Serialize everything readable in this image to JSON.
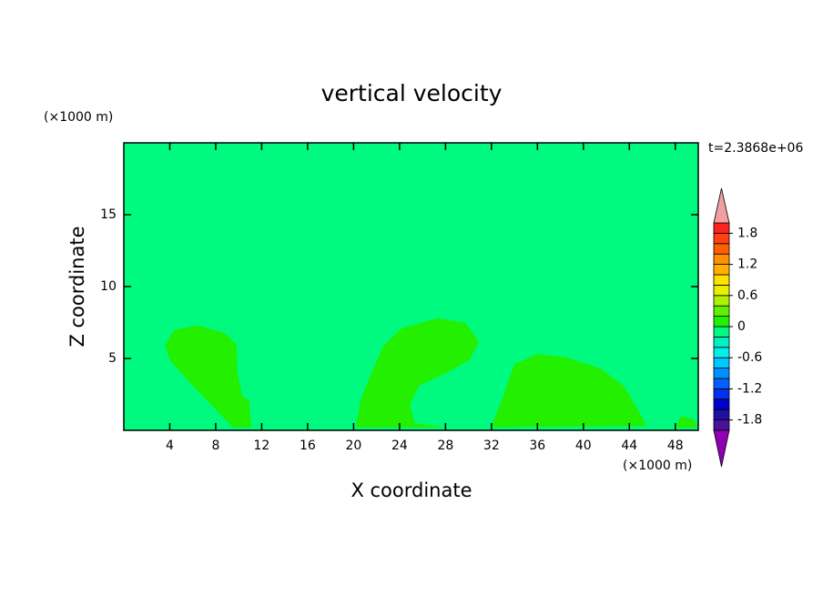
{
  "chart_data": {
    "type": "contour",
    "title": "vertical velocity",
    "x_label": "X coordinate",
    "y_label": "Z coordinate",
    "x_unit": "(×1000 m)",
    "y_unit": "(×1000 m)",
    "time_label": "t=2.3868e+06",
    "xlim": [
      0,
      50
    ],
    "ylim": [
      0,
      20
    ],
    "xticks": [
      4,
      8,
      12,
      16,
      20,
      24,
      28,
      32,
      36,
      40,
      44,
      48
    ],
    "yticks": [
      5,
      10,
      15
    ],
    "background_color": "#00fa80",
    "region_color": "#22f000",
    "regions": [
      {
        "x": [
          3.6,
          4.4,
          6.4,
          8.7,
          9.8,
          9.9,
          10.3,
          10.9,
          11.1,
          9.5,
          8.3,
          6.0,
          4.0
        ],
        "z": [
          5.9,
          7.0,
          7.3,
          6.8,
          6.0,
          4.0,
          2.4,
          2.1,
          0.2,
          0.2,
          1.2,
          3.1,
          4.9
        ]
      },
      {
        "x": [
          20.2,
          20.6,
          21.4,
          22.6,
          24.2,
          27.3,
          29.7,
          30.9,
          30.1,
          28.1,
          25.7,
          24.9,
          25.3,
          28.1
        ],
        "z": [
          0.2,
          2.1,
          3.7,
          5.9,
          7.1,
          7.8,
          7.5,
          6.2,
          4.9,
          4.0,
          3.1,
          1.8,
          0.5,
          0.2
        ]
      },
      {
        "x": [
          32.1,
          32.9,
          34.0,
          36.0,
          38.4,
          41.5,
          43.5,
          44.7,
          45.5,
          32.1
        ],
        "z": [
          0.5,
          2.1,
          4.6,
          5.3,
          5.1,
          4.3,
          3.1,
          1.5,
          0.3,
          0.2
        ]
      },
      {
        "x": [
          48.0,
          48.5,
          49.5,
          50.0
        ],
        "z": [
          0.2,
          1.0,
          0.8,
          0.2
        ]
      }
    ],
    "colorbar": {
      "levels": [
        -2.0,
        -1.8,
        -1.6,
        -1.4,
        -1.2,
        -1.0,
        -0.8,
        -0.6,
        -0.4,
        -0.2,
        0,
        0.2,
        0.4,
        0.6,
        0.8,
        1.0,
        1.2,
        1.4,
        1.6,
        1.8,
        2.0
      ],
      "colors": [
        "#9000b0",
        "#4a1098",
        "#1e10a0",
        "#0000d0",
        "#0030f0",
        "#0060ff",
        "#0090ff",
        "#00c8ff",
        "#00f0f0",
        "#00f0c0",
        "#00fa80",
        "#22f000",
        "#60f000",
        "#b0f000",
        "#e8f000",
        "#ffe000",
        "#ffb000",
        "#ff9000",
        "#ff6000",
        "#ff4010",
        "#ff2020",
        "#f0a0a0"
      ],
      "ticks": [
        -1.8,
        -1.2,
        -0.6,
        0,
        0.6,
        1.2,
        1.8
      ]
    }
  }
}
